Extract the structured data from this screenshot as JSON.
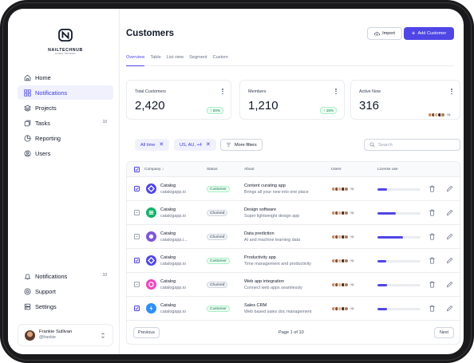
{
  "brand": {
    "name": "NAILTECHNUB",
    "tagline": "GLOBAL NETWORK"
  },
  "nav": [
    {
      "label": "Home",
      "icon": "home-icon"
    },
    {
      "label": "Notifications",
      "icon": "grid-icon",
      "active": true
    },
    {
      "label": "Projects",
      "icon": "layers-icon"
    },
    {
      "label": "Tasks",
      "icon": "tasks-icon",
      "badge": "10"
    },
    {
      "label": "Reporting",
      "icon": "pie-chart-icon"
    },
    {
      "label": "Users",
      "icon": "user-circle-icon"
    }
  ],
  "bottom_nav": [
    {
      "label": "Notifications",
      "icon": "bell-icon",
      "badge": "10"
    },
    {
      "label": "Support",
      "icon": "support-icon"
    },
    {
      "label": "Settings",
      "icon": "settings-icon"
    }
  ],
  "user": {
    "name": "Frankie Sullivan",
    "handle": "@frankie"
  },
  "header": {
    "title": "Customers",
    "import_label": "Import",
    "add_label": "Add Customer"
  },
  "tabs": [
    {
      "label": "Overview",
      "active": true
    },
    {
      "label": "Table"
    },
    {
      "label": "List view"
    },
    {
      "label": "Segment"
    },
    {
      "label": "Custom"
    }
  ],
  "stats": [
    {
      "label": "Total Customers",
      "value": "2,420",
      "change": "20%"
    },
    {
      "label": "Members",
      "value": "1,210",
      "change": "15%"
    },
    {
      "label": "Active Now",
      "value": "316",
      "extra": "+4"
    }
  ],
  "filters": {
    "chips": [
      "All time",
      "US, AU, +4"
    ],
    "more_label": "More filters",
    "search_placeholder": "Search"
  },
  "table": {
    "columns": {
      "company": "Company",
      "status": "Status",
      "about": "About",
      "users": "Users",
      "license": "License use"
    },
    "rows": [
      {
        "checked": true,
        "name": "Catalog",
        "url": "catalogapp.io",
        "status": "Customer",
        "title": "Content curating app",
        "desc": "Brings all your new into one place",
        "more": "+4",
        "license": 0.22,
        "icon_color": "#4f46e5"
      },
      {
        "checked": false,
        "name": "Catalog",
        "url": "catalogapp.io",
        "status": "Churned",
        "title": "Design software",
        "desc": "Super lightweight design app",
        "more": "+4",
        "license": 0.42,
        "icon_color": "#17b26a"
      },
      {
        "checked": false,
        "name": "Catalog",
        "url": "catalogapp.i...",
        "status": "Churned",
        "title": "Data prediction",
        "desc": "AI and machine learning data",
        "more": "+4",
        "license": 0.6,
        "icon_color": "#7f56d9"
      },
      {
        "checked": true,
        "name": "Catalog",
        "url": "catalogapp.io",
        "status": "Customer",
        "title": "Productivity app",
        "desc": "Time management and productivity",
        "more": "+4",
        "license": 0.2,
        "icon_color": "#4f46e5"
      },
      {
        "checked": false,
        "name": "Catalog",
        "url": "catalogapp.io",
        "status": "Churned",
        "title": "Web app integration",
        "desc": "Connect web apps seamlessly",
        "more": "+4",
        "license": 0.22,
        "icon_color": "#ee46bc"
      },
      {
        "checked": true,
        "name": "Catalog",
        "url": "catalogapp.io",
        "status": "Customer",
        "title": "Sales CRM",
        "desc": "Web based sales doc management",
        "more": "+4",
        "license": 0.22,
        "icon_color": "#2e90fa"
      }
    ]
  },
  "pagination": {
    "prev_label": "Previous",
    "info": "Page 1 of 10",
    "next_label": "Next"
  },
  "colors": {
    "accent": "#4f46e5",
    "success": "#067647",
    "active_bg": "#f0f1fd"
  }
}
